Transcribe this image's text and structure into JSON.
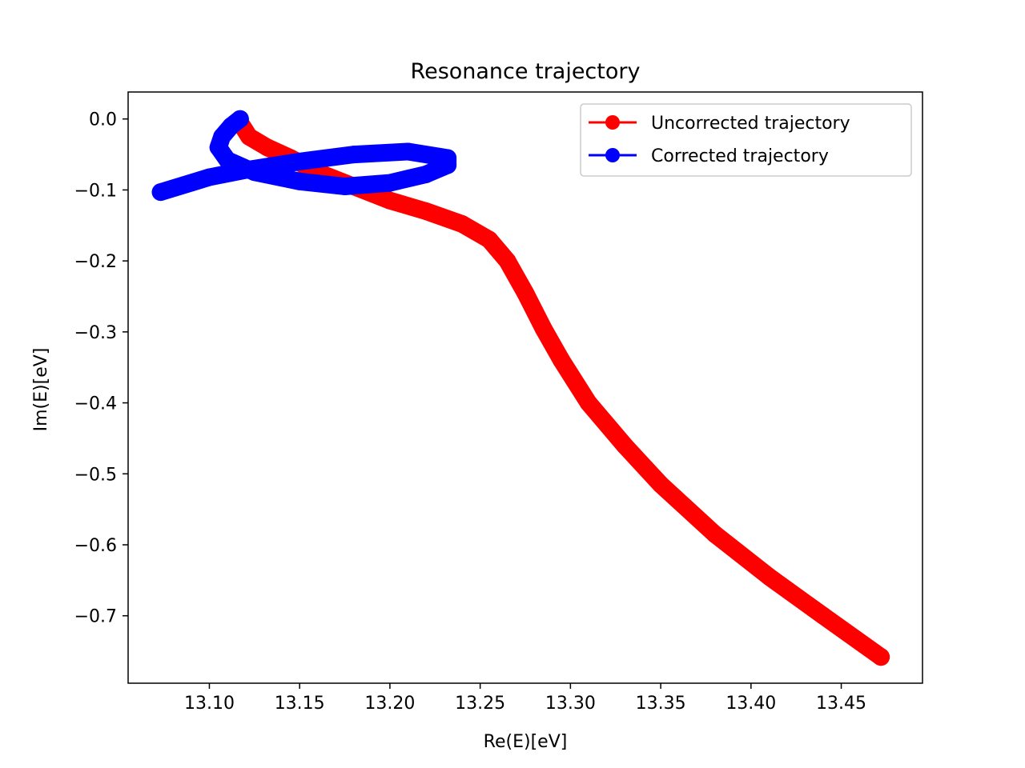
{
  "chart_data": {
    "type": "line",
    "title": "Resonance trajectory",
    "xlabel": "Re(E)[eV]",
    "ylabel": "Im(E)[eV]",
    "xlim": [
      13.055,
      13.495
    ],
    "ylim": [
      -0.795,
      0.038
    ],
    "xticks": [
      13.1,
      13.15,
      13.2,
      13.25,
      13.3,
      13.35,
      13.4,
      13.45
    ],
    "xtick_labels": [
      "13.10",
      "13.15",
      "13.20",
      "13.25",
      "13.30",
      "13.35",
      "13.40",
      "13.45"
    ],
    "yticks": [
      0.0,
      -0.1,
      -0.2,
      -0.3,
      -0.4,
      -0.5,
      -0.6,
      -0.7
    ],
    "ytick_labels": [
      "0.0",
      "−0.1",
      "−0.2",
      "−0.3",
      "−0.4",
      "−0.5",
      "−0.6",
      "−0.7"
    ],
    "grid": false,
    "legend_position": "top-right",
    "series": [
      {
        "name": "Uncorrected trajectory",
        "color": "#ff0000",
        "points": [
          [
            13.117,
            -0.005
          ],
          [
            13.122,
            -0.025
          ],
          [
            13.132,
            -0.04
          ],
          [
            13.145,
            -0.055
          ],
          [
            13.16,
            -0.075
          ],
          [
            13.18,
            -0.095
          ],
          [
            13.2,
            -0.115
          ],
          [
            13.22,
            -0.13
          ],
          [
            13.24,
            -0.148
          ],
          [
            13.255,
            -0.17
          ],
          [
            13.265,
            -0.2
          ],
          [
            13.275,
            -0.245
          ],
          [
            13.285,
            -0.295
          ],
          [
            13.295,
            -0.34
          ],
          [
            13.31,
            -0.4
          ],
          [
            13.33,
            -0.46
          ],
          [
            13.35,
            -0.515
          ],
          [
            13.38,
            -0.585
          ],
          [
            13.41,
            -0.645
          ],
          [
            13.44,
            -0.7
          ],
          [
            13.472,
            -0.758
          ]
        ]
      },
      {
        "name": "Corrected trajectory",
        "color": "#0000ff",
        "points": [
          [
            13.117,
            0.0
          ],
          [
            13.112,
            -0.01
          ],
          [
            13.107,
            -0.025
          ],
          [
            13.105,
            -0.04
          ],
          [
            13.11,
            -0.058
          ],
          [
            13.125,
            -0.075
          ],
          [
            13.15,
            -0.088
          ],
          [
            13.175,
            -0.095
          ],
          [
            13.2,
            -0.09
          ],
          [
            13.22,
            -0.078
          ],
          [
            13.232,
            -0.065
          ],
          [
            13.232,
            -0.055
          ],
          [
            13.21,
            -0.046
          ],
          [
            13.18,
            -0.05
          ],
          [
            13.15,
            -0.06
          ],
          [
            13.12,
            -0.072
          ],
          [
            13.1,
            -0.082
          ],
          [
            13.073,
            -0.103
          ]
        ]
      }
    ]
  }
}
